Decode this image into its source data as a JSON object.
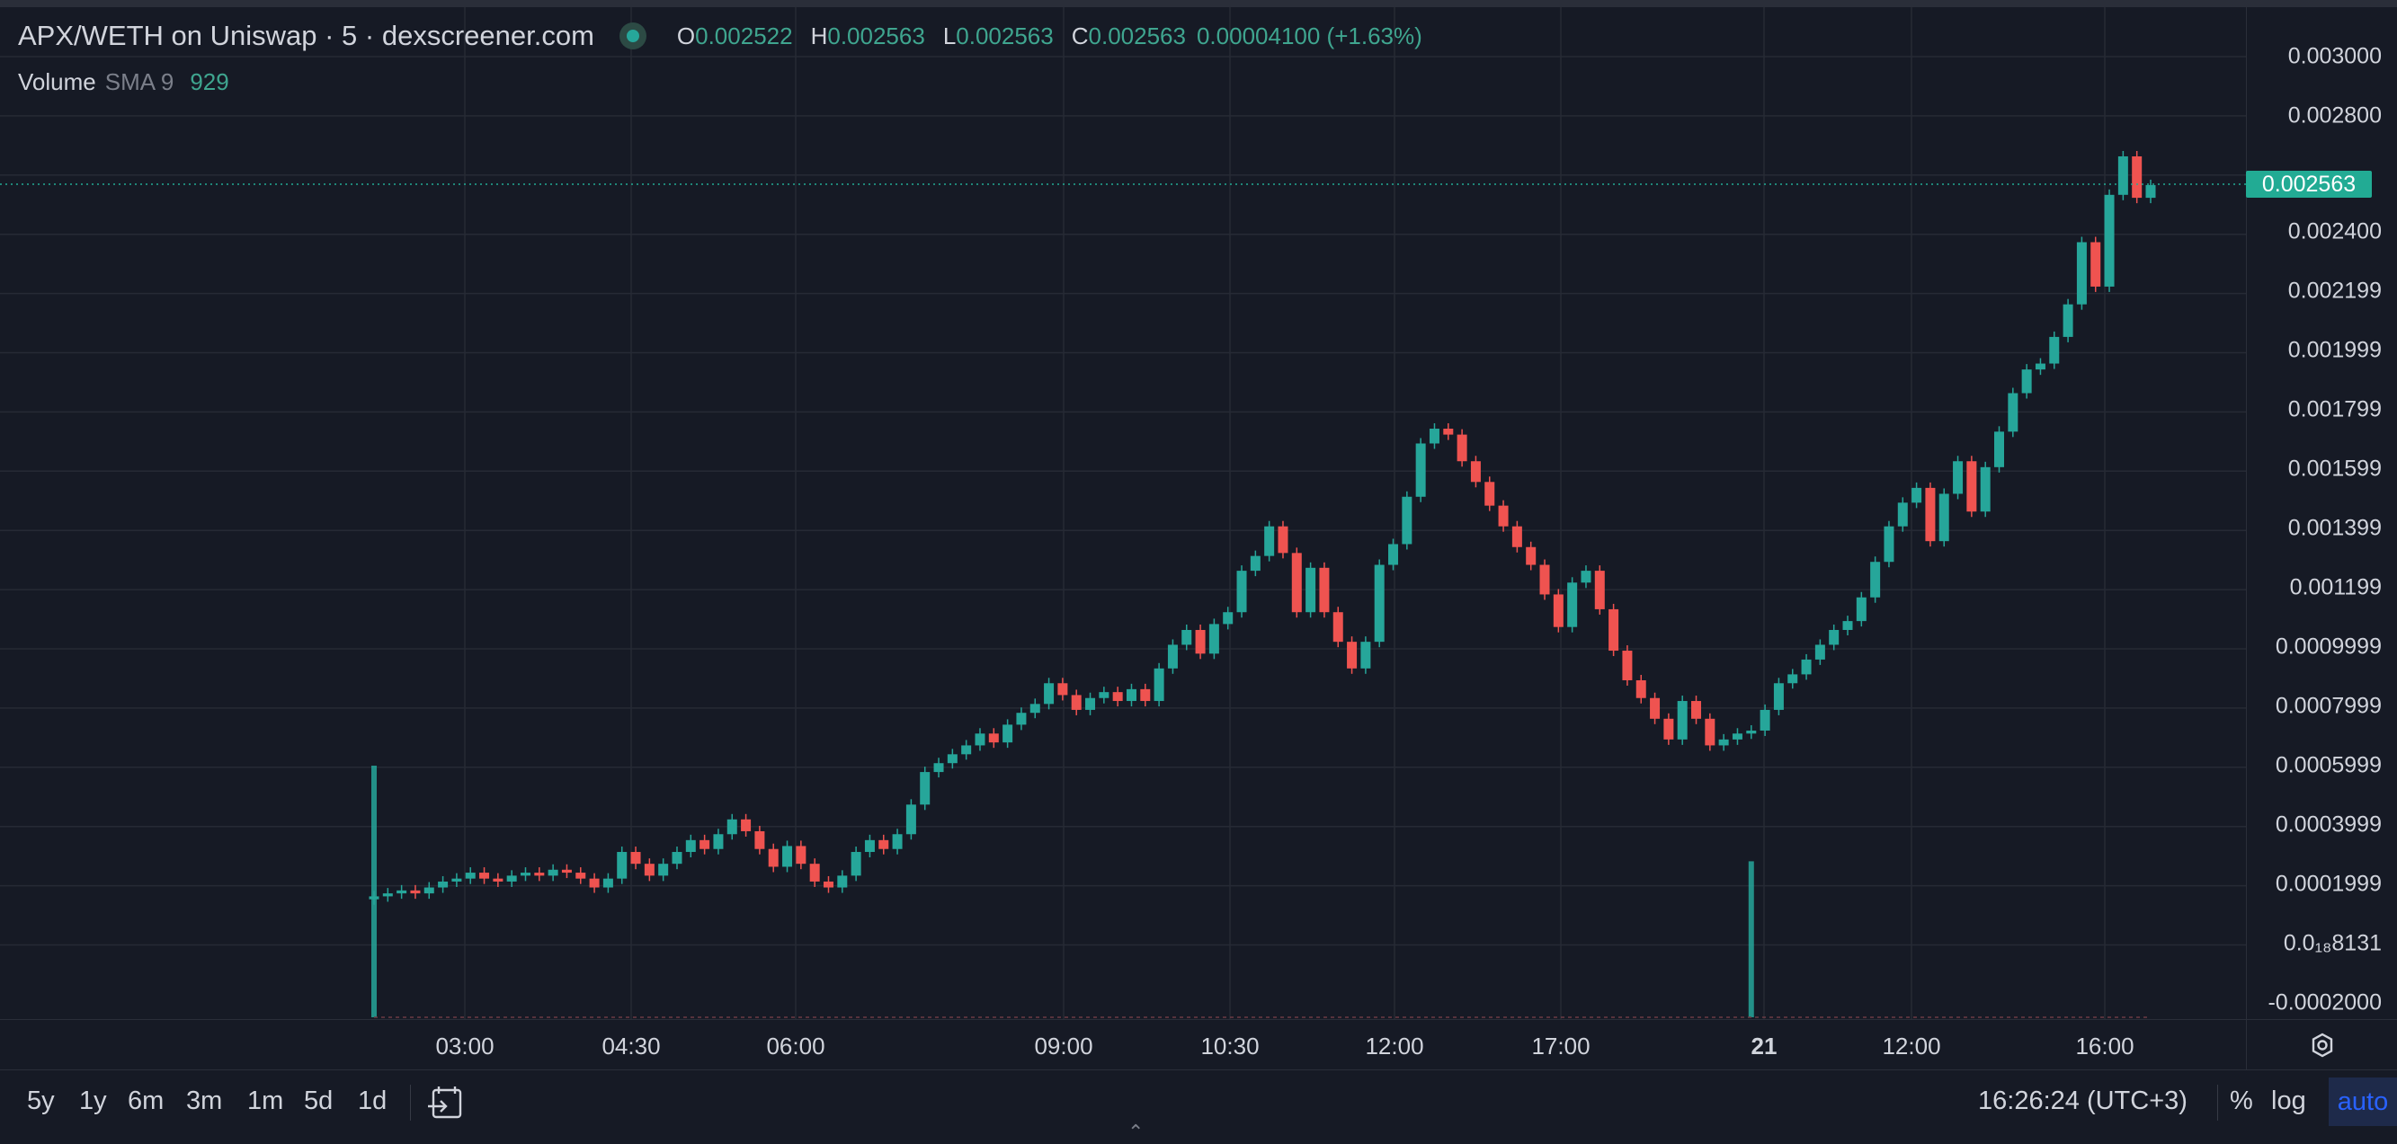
{
  "header": {
    "title": "APX/WETH on Uniswap · 5 · dexscreener.com",
    "ohlc": [
      {
        "label": "O",
        "value": "0.002522"
      },
      {
        "label": "H",
        "value": "0.002563"
      },
      {
        "label": "L",
        "value": "0.002563"
      },
      {
        "label": "C",
        "value": "0.002563"
      }
    ],
    "change": "0.00004100 (+1.63%)",
    "volume_label": "Volume",
    "volume_sma": "SMA 9",
    "volume_value": "929"
  },
  "current_price": "0.002563",
  "price_axis": [
    "0.003000",
    "0.002800",
    "0.002400",
    "0.002199",
    "0.001999",
    "0.001799",
    "0.001599",
    "0.001399",
    "0.001199",
    "0.0009999",
    "0.0007999",
    "0.0005999",
    "0.0003999",
    "0.0001999",
    "0.0₁₈8131",
    "-0.0002000"
  ],
  "time_axis": [
    {
      "label": "03:00",
      "bold": false
    },
    {
      "label": "04:30",
      "bold": false
    },
    {
      "label": "06:00",
      "bold": false
    },
    {
      "label": "09:00",
      "bold": false
    },
    {
      "label": "10:30",
      "bold": false
    },
    {
      "label": "12:00",
      "bold": false
    },
    {
      "label": "17:00",
      "bold": false
    },
    {
      "label": "21",
      "bold": true
    },
    {
      "label": "12:00",
      "bold": false
    },
    {
      "label": "16:00",
      "bold": false
    }
  ],
  "bottom_bar": {
    "ranges": [
      "5y",
      "1y",
      "6m",
      "3m",
      "1m",
      "5d",
      "1d"
    ],
    "clock": "16:26:24 (UTC+3)",
    "percent": "%",
    "log": "log",
    "auto": "auto"
  },
  "colors": {
    "up": "#26a69a",
    "down": "#ef5350",
    "background": "#161a25",
    "grid": "#262a35",
    "price_line": "#22ab94",
    "auto_active": "#2962ff"
  },
  "chart_data": {
    "type": "candlestick",
    "title": "APX/WETH on Uniswap · 5 · dexscreener.com",
    "ylim": [
      -0.0002,
      0.003
    ],
    "price_ticks": [
      0.003,
      0.0028,
      0.0024,
      0.002199,
      0.001999,
      0.001799,
      0.001599,
      0.001399,
      0.001199,
      0.0009999,
      0.0007999,
      0.0005999,
      0.0003999,
      0.0001999,
      0.0,
      -0.0002
    ],
    "series": [
      {
        "name": "Price",
        "candles": [
          [
            0.00015,
            0.00016
          ],
          [
            0.00016,
            0.00017
          ],
          [
            0.00017,
            0.00018
          ],
          [
            0.00018,
            0.00017
          ],
          [
            0.00017,
            0.00019
          ],
          [
            0.00019,
            0.00021
          ],
          [
            0.00021,
            0.00022
          ],
          [
            0.00022,
            0.00024
          ],
          [
            0.00024,
            0.00022
          ],
          [
            0.00022,
            0.00021
          ],
          [
            0.00021,
            0.00023
          ],
          [
            0.00023,
            0.00024
          ],
          [
            0.00024,
            0.00023
          ],
          [
            0.00023,
            0.00025
          ],
          [
            0.00025,
            0.00024
          ],
          [
            0.00024,
            0.00022
          ],
          [
            0.00022,
            0.00019
          ],
          [
            0.00019,
            0.00022
          ],
          [
            0.00022,
            0.00031
          ],
          [
            0.00031,
            0.00027
          ],
          [
            0.00027,
            0.00023
          ],
          [
            0.00023,
            0.00027
          ],
          [
            0.00027,
            0.00031
          ],
          [
            0.00031,
            0.00035
          ],
          [
            0.00035,
            0.00032
          ],
          [
            0.00032,
            0.00037
          ],
          [
            0.00037,
            0.00042
          ],
          [
            0.00042,
            0.00038
          ],
          [
            0.00038,
            0.00032
          ],
          [
            0.00032,
            0.00026
          ],
          [
            0.00026,
            0.00033
          ],
          [
            0.00033,
            0.00027
          ],
          [
            0.00027,
            0.00021
          ],
          [
            0.00021,
            0.00019
          ],
          [
            0.00019,
            0.00023
          ],
          [
            0.00023,
            0.00031
          ],
          [
            0.00031,
            0.00035
          ],
          [
            0.00035,
            0.00032
          ],
          [
            0.00032,
            0.00037
          ],
          [
            0.00037,
            0.00047
          ],
          [
            0.00047,
            0.00058
          ],
          [
            0.00058,
            0.00061
          ],
          [
            0.00061,
            0.00064
          ],
          [
            0.00064,
            0.00067
          ],
          [
            0.00067,
            0.00071
          ],
          [
            0.00071,
            0.00068
          ],
          [
            0.00068,
            0.00074
          ],
          [
            0.00074,
            0.00078
          ],
          [
            0.00078,
            0.00081
          ],
          [
            0.00081,
            0.00088
          ],
          [
            0.00088,
            0.00084
          ],
          [
            0.00084,
            0.00079
          ],
          [
            0.00079,
            0.00083
          ],
          [
            0.00083,
            0.00085
          ],
          [
            0.00085,
            0.00082
          ],
          [
            0.00082,
            0.00086
          ],
          [
            0.00086,
            0.00082
          ],
          [
            0.00082,
            0.00093
          ],
          [
            0.00093,
            0.00101
          ],
          [
            0.00101,
            0.00106
          ],
          [
            0.00106,
            0.00098
          ],
          [
            0.00098,
            0.00108
          ],
          [
            0.00108,
            0.00112
          ],
          [
            0.00112,
            0.00126
          ],
          [
            0.00126,
            0.00131
          ],
          [
            0.00131,
            0.00141
          ],
          [
            0.00141,
            0.00132
          ],
          [
            0.00132,
            0.00112
          ],
          [
            0.00112,
            0.00127
          ],
          [
            0.00127,
            0.00112
          ],
          [
            0.00112,
            0.00102
          ],
          [
            0.00102,
            0.00093
          ],
          [
            0.00093,
            0.00102
          ],
          [
            0.00102,
            0.00128
          ],
          [
            0.00128,
            0.00135
          ],
          [
            0.00135,
            0.00151
          ],
          [
            0.00151,
            0.00169
          ],
          [
            0.00169,
            0.00174
          ],
          [
            0.00174,
            0.00172
          ],
          [
            0.00172,
            0.00163
          ],
          [
            0.00163,
            0.00156
          ],
          [
            0.00156,
            0.00148
          ],
          [
            0.00148,
            0.00141
          ],
          [
            0.00141,
            0.00134
          ],
          [
            0.00134,
            0.00128
          ],
          [
            0.00128,
            0.00118
          ],
          [
            0.00118,
            0.00107
          ],
          [
            0.00107,
            0.00122
          ],
          [
            0.00122,
            0.00126
          ],
          [
            0.00126,
            0.00113
          ],
          [
            0.00113,
            0.00099
          ],
          [
            0.00099,
            0.00089
          ],
          [
            0.00089,
            0.00083
          ],
          [
            0.00083,
            0.00076
          ],
          [
            0.00076,
            0.00069
          ],
          [
            0.00069,
            0.00082
          ],
          [
            0.00082,
            0.00076
          ],
          [
            0.00076,
            0.00067
          ],
          [
            0.00067,
            0.00069
          ],
          [
            0.00069,
            0.00071
          ],
          [
            0.00071,
            0.00072
          ],
          [
            0.00072,
            0.00079
          ],
          [
            0.00079,
            0.00088
          ],
          [
            0.00088,
            0.00091
          ],
          [
            0.00091,
            0.00096
          ],
          [
            0.00096,
            0.00101
          ],
          [
            0.00101,
            0.00106
          ],
          [
            0.00106,
            0.00109
          ],
          [
            0.00109,
            0.00117
          ],
          [
            0.00117,
            0.00129
          ],
          [
            0.00129,
            0.00141
          ],
          [
            0.00141,
            0.00149
          ],
          [
            0.00149,
            0.00154
          ],
          [
            0.00154,
            0.00136
          ],
          [
            0.00136,
            0.00152
          ],
          [
            0.00152,
            0.00163
          ],
          [
            0.00163,
            0.00146
          ],
          [
            0.00146,
            0.00161
          ],
          [
            0.00161,
            0.00173
          ],
          [
            0.00173,
            0.00186
          ],
          [
            0.00186,
            0.00194
          ],
          [
            0.00194,
            0.00196
          ],
          [
            0.00196,
            0.00205
          ],
          [
            0.00205,
            0.00216
          ],
          [
            0.00216,
            0.00237
          ],
          [
            0.00237,
            0.00222
          ],
          [
            0.00222,
            0.00253
          ],
          [
            0.00253,
            0.00266
          ],
          [
            0.00266,
            0.00252
          ],
          [
            0.00252,
            0.002563
          ]
        ]
      }
    ],
    "volume": {
      "name": "Volume",
      "bars": [
        {
          "at_candle": 0,
          "height_fraction": 0.5
        },
        {
          "at_candle": 100,
          "height_fraction": 0.31
        }
      ]
    },
    "xlabel": "",
    "ylabel": "",
    "grid": true
  }
}
